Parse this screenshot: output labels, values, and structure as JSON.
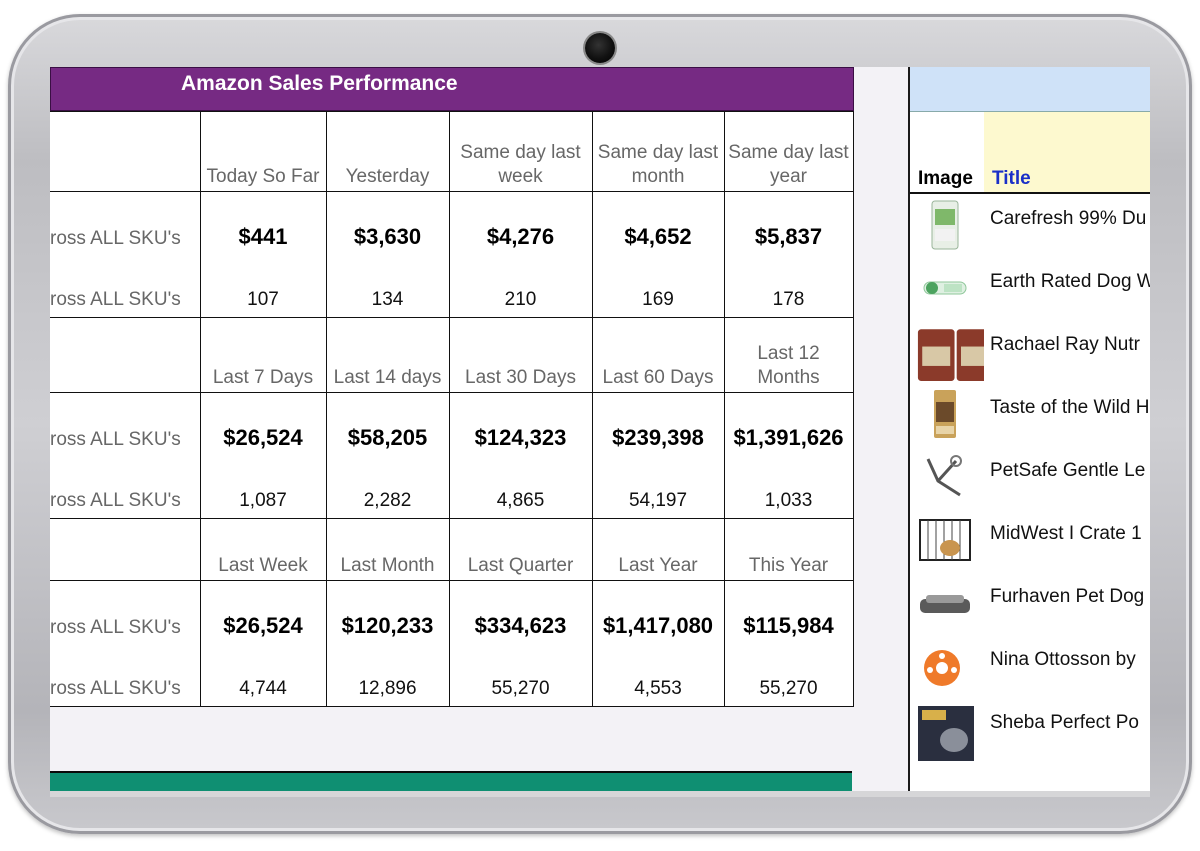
{
  "dashboard": {
    "title": "Amazon Sales Performance",
    "sections": [
      {
        "headers": [
          "Today So Far",
          "Yesterday",
          "Same day last week",
          "Same day last month",
          "Same day last year"
        ],
        "row_labels": [
          "ross ALL SKU's",
          "ross ALL SKU's"
        ],
        "primary": [
          "$441",
          "$3,630",
          "$4,276",
          "$4,652",
          "$5,837"
        ],
        "secondary": [
          "107",
          "134",
          "210",
          "169",
          "178"
        ]
      },
      {
        "headers": [
          "Last 7 Days",
          "Last 14 days",
          "Last 30 Days",
          "Last 60 Days",
          "Last 12 Months"
        ],
        "row_labels": [
          "ross ALL SKU's",
          "ross ALL SKU's"
        ],
        "primary": [
          "$26,524",
          "$58,205",
          "$124,323",
          "$239,398",
          "$1,391,626"
        ],
        "secondary": [
          "1,087",
          "2,282",
          "4,865",
          "54,197",
          "1,033"
        ]
      },
      {
        "headers": [
          "Last Week",
          "Last Month",
          "Last Quarter",
          "Last Year",
          "This Year"
        ],
        "row_labels": [
          "ross ALL SKU's",
          "ross ALL SKU's"
        ],
        "primary": [
          "$26,524",
          "$120,233",
          "$334,623",
          "$1,417,080",
          "$115,984"
        ],
        "secondary": [
          "4,744",
          "12,896",
          "55,270",
          "4,553",
          "55,270"
        ]
      }
    ]
  },
  "products_panel": {
    "col_image": "Image",
    "col_title": "Title",
    "items": [
      {
        "title": "Carefresh 99% Du",
        "icon": "bedding-bag-icon"
      },
      {
        "title": "Earth Rated Dog W",
        "icon": "poop-bag-dispenser-icon"
      },
      {
        "title": "Rachael Ray Nutr",
        "icon": "dog-treat-bags-icon"
      },
      {
        "title": "Taste of the Wild H",
        "icon": "dog-food-bag-icon"
      },
      {
        "title": "PetSafe Gentle Le",
        "icon": "dog-leash-icon"
      },
      {
        "title": "MidWest I Crate 1",
        "icon": "dog-crate-icon"
      },
      {
        "title": "Furhaven Pet Dog",
        "icon": "dog-bed-icon"
      },
      {
        "title": "Nina Ottosson by",
        "icon": "puzzle-toy-icon"
      },
      {
        "title": "Sheba Perfect Po",
        "icon": "cat-food-box-icon"
      }
    ]
  },
  "colors": {
    "title_bar": "#762a83",
    "green_bar": "#0f8f72",
    "panel_top": "#cfe2f8",
    "title_col_bg": "#fdf9cf",
    "title_col_text": "#1a2fc8"
  }
}
